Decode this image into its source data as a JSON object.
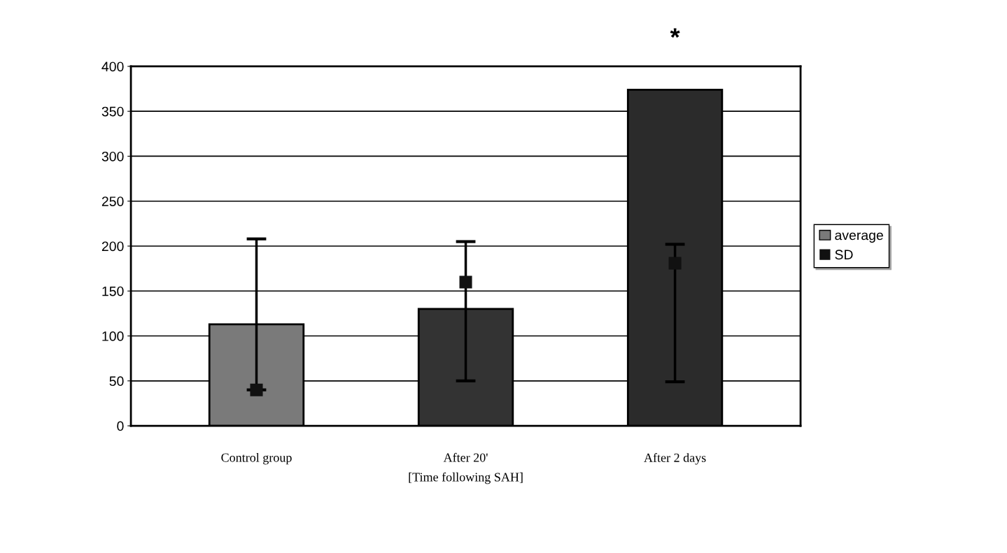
{
  "chart_data": {
    "type": "bar",
    "categories": [
      "Control group",
      "After 20'",
      "After 2 days"
    ],
    "xlabel": "[Time following SAH]",
    "series": [
      {
        "name": "average",
        "colors": [
          "#7a7a7a",
          "#333333",
          "#2b2b2b"
        ],
        "values": [
          113,
          130,
          374
        ]
      },
      {
        "name": "SD",
        "type": "scatter",
        "color": "#111111",
        "marker": "square",
        "values": [
          40,
          160,
          181
        ],
        "errors": [
          [
            40,
            208
          ],
          [
            50,
            205
          ],
          [
            49,
            202
          ]
        ]
      }
    ],
    "ylim": [
      0,
      400
    ],
    "yticks": [
      0,
      50,
      100,
      150,
      200,
      250,
      300,
      350,
      400
    ],
    "grid": "y",
    "legend": "right",
    "annotations": [
      {
        "text": "*",
        "x": "After 2 days",
        "y": 374
      }
    ]
  }
}
